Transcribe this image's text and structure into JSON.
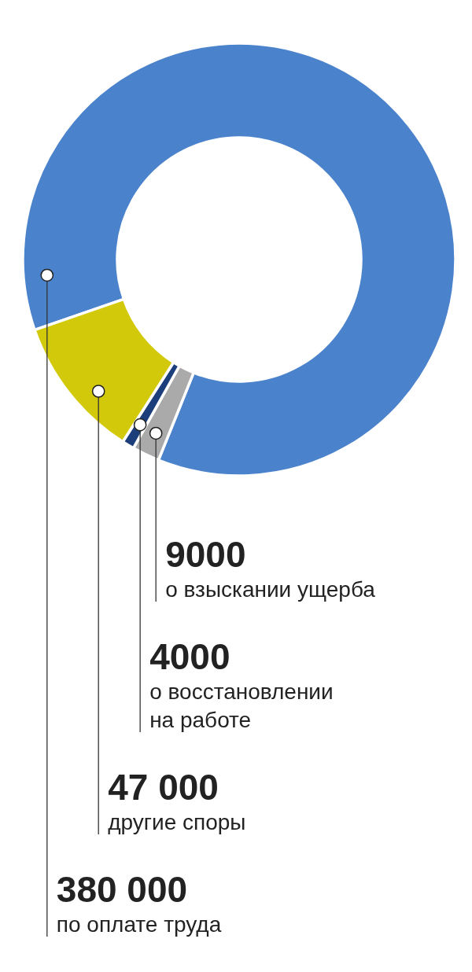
{
  "chart_data": {
    "type": "donut",
    "categories": [
      "по оплате труда",
      "о взыскании ущерба",
      "о восстановлении на работе",
      "другие споры"
    ],
    "values": [
      380000,
      9000,
      4000,
      47000
    ],
    "value_labels": [
      "380 000",
      "9000",
      "4000",
      "47 000"
    ],
    "colors": [
      "#4a82cc",
      "#aaaaaa",
      "#1c3f7c",
      "#d2c90a"
    ]
  }
}
